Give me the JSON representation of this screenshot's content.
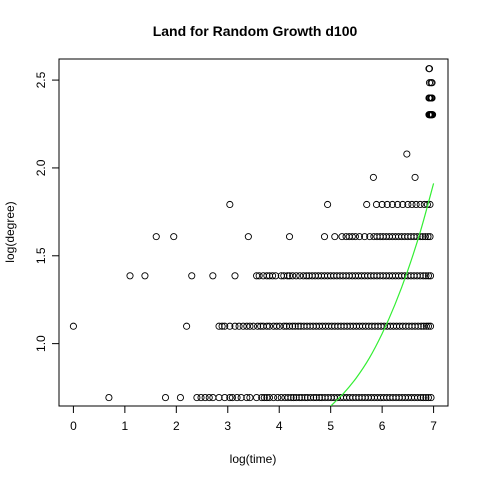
{
  "chart_data": {
    "type": "scatter",
    "title": "Land for Random Growth d100",
    "xlabel": "log(time)",
    "ylabel": "log(degree)",
    "xlim": [
      -0.28,
      7.28
    ],
    "ylim": [
      0.645,
      2.62
    ],
    "xticks": [
      0,
      1,
      2,
      3,
      4,
      5,
      6,
      7
    ],
    "xtick_labels": [
      "0",
      "1",
      "2",
      "3",
      "4",
      "5",
      "6",
      "7"
    ],
    "yticks": [
      1.0,
      1.5,
      2.0,
      2.5
    ],
    "ytick_labels": [
      "1.0",
      "1.5",
      "2.0",
      "2.5"
    ],
    "grid": false,
    "legend": "none",
    "fit_color": "#33ee33",
    "point_color": "#000000",
    "series": [
      {
        "levels": [
          {
            "y": 0.693,
            "x": [
              0.69,
              1.79,
              2.08,
              2.4,
              2.48,
              2.56,
              2.64,
              2.71,
              2.83,
              2.94,
              3.04,
              3.09,
              3.18,
              3.26,
              3.37,
              3.43,
              3.56,
              3.66,
              3.71,
              3.76,
              3.81,
              3.89,
              3.97,
              4.04,
              4.11,
              4.17,
              4.23,
              4.28,
              4.33,
              4.39,
              4.44,
              4.5,
              4.55,
              4.61,
              4.67,
              4.72,
              4.78,
              4.83,
              4.89,
              4.95,
              5.01,
              5.07,
              5.13,
              5.19,
              5.25,
              5.31,
              5.37,
              5.43,
              5.49,
              5.55,
              5.61,
              5.67,
              5.73,
              5.79,
              5.85,
              5.91,
              5.97,
              6.03,
              6.09,
              6.15,
              6.21,
              6.27,
              6.33,
              6.39,
              6.45,
              6.51,
              6.57,
              6.63,
              6.69,
              6.75,
              6.8,
              6.85,
              6.9,
              6.95
            ]
          },
          {
            "y": 1.099,
            "x": [
              0.0,
              2.2,
              2.83,
              2.89,
              2.94,
              3.04,
              3.14,
              3.22,
              3.3,
              3.37,
              3.43,
              3.5,
              3.58,
              3.64,
              3.69,
              3.76,
              3.81,
              3.89,
              3.95,
              4.01,
              4.09,
              4.14,
              4.2,
              4.26,
              4.31,
              4.37,
              4.42,
              4.48,
              4.54,
              4.6,
              4.66,
              4.72,
              4.78,
              4.84,
              4.9,
              4.96,
              5.02,
              5.08,
              5.14,
              5.2,
              5.26,
              5.32,
              5.38,
              5.44,
              5.5,
              5.56,
              5.62,
              5.68,
              5.74,
              5.8,
              5.86,
              5.92,
              5.98,
              6.04,
              6.1,
              6.16,
              6.22,
              6.28,
              6.34,
              6.4,
              6.46,
              6.52,
              6.58,
              6.64,
              6.7,
              6.76,
              6.81,
              6.86,
              6.9,
              6.94
            ]
          },
          {
            "y": 1.386,
            "x": [
              1.1,
              1.39,
              2.3,
              2.71,
              3.14,
              3.56,
              3.61,
              3.69,
              3.76,
              3.81,
              3.87,
              3.93,
              4.04,
              4.09,
              4.16,
              4.2,
              4.26,
              4.33,
              4.4,
              4.47,
              4.53,
              4.58,
              4.64,
              4.7,
              4.76,
              4.82,
              4.88,
              4.94,
              5.0,
              5.06,
              5.12,
              5.18,
              5.24,
              5.3,
              5.36,
              5.42,
              5.48,
              5.54,
              5.6,
              5.66,
              5.72,
              5.78,
              5.84,
              5.9,
              5.96,
              6.02,
              6.08,
              6.14,
              6.2,
              6.26,
              6.32,
              6.38,
              6.44,
              6.5,
              6.56,
              6.62,
              6.68,
              6.74,
              6.8,
              6.85,
              6.9,
              6.94
            ]
          },
          {
            "y": 1.609,
            "x": [
              1.61,
              1.95,
              3.4,
              4.2,
              4.88,
              5.08,
              5.22,
              5.3,
              5.36,
              5.42,
              5.48,
              5.56,
              5.66,
              5.76,
              5.84,
              5.9,
              5.96,
              6.02,
              6.08,
              6.14,
              6.2,
              6.26,
              6.32,
              6.38,
              6.44,
              6.5,
              6.56,
              6.62,
              6.68,
              6.74,
              6.79,
              6.84,
              6.89,
              6.93
            ]
          },
          {
            "y": 1.792,
            "x": [
              3.04,
              4.94,
              5.7,
              5.89,
              6.0,
              6.1,
              6.2,
              6.3,
              6.4,
              6.5,
              6.58,
              6.66,
              6.74,
              6.82,
              6.88,
              6.93
            ]
          },
          {
            "y": 1.946,
            "x": [
              5.83,
              6.64
            ]
          },
          {
            "y": 2.079,
            "x": [
              6.48
            ]
          },
          {
            "y": 2.303,
            "x": [
              6.91,
              6.92,
              6.93,
              6.94,
              6.95,
              6.96,
              6.97,
              6.98
            ]
          },
          {
            "y": 2.398,
            "x": [
              6.91,
              6.92,
              6.93,
              6.95,
              6.96,
              6.97
            ]
          },
          {
            "y": 2.485,
            "x": [
              6.92,
              6.95,
              6.97
            ]
          },
          {
            "y": 2.565,
            "x": [
              6.91,
              6.92
            ]
          }
        ]
      }
    ],
    "fit_line": {
      "x": [
        5.0,
        5.25,
        5.5,
        5.75,
        6.0,
        6.25,
        6.5,
        6.75,
        7.0
      ],
      "y": [
        0.645,
        0.717,
        0.806,
        0.917,
        1.057,
        1.223,
        1.418,
        1.645,
        1.912
      ]
    }
  }
}
